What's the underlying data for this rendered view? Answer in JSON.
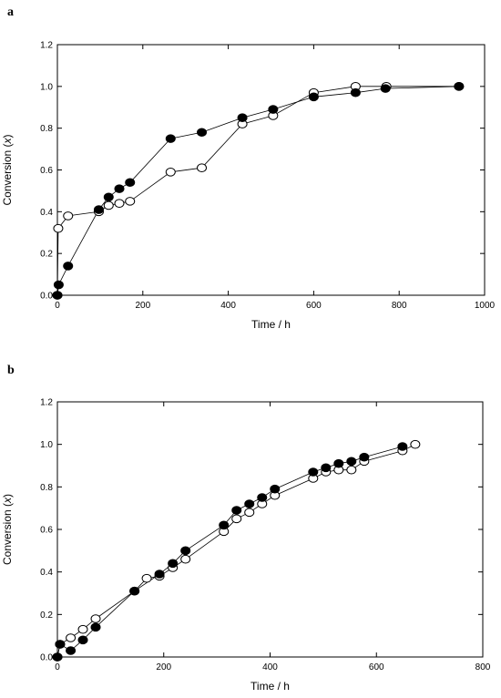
{
  "chart_data": [
    {
      "panel": "a",
      "type": "scatter",
      "xlabel": "Time / h",
      "ylabel": "Conversion (x)",
      "xlim": [
        0,
        1000
      ],
      "ylim": [
        0,
        1.2
      ],
      "xticks": [
        0,
        200,
        400,
        600,
        800,
        1000
      ],
      "yticks": [
        0.0,
        0.2,
        0.4,
        0.6,
        0.8,
        1.0,
        1.2
      ],
      "xtick_labels": [
        "0",
        "200",
        "400",
        "600",
        "800",
        "1000"
      ],
      "ytick_labels": [
        "0.0",
        "0.2",
        "0.4",
        "0.6",
        "0.8",
        "1.0",
        "1.2"
      ],
      "grid": false,
      "series": [
        {
          "marker": "filled-circle",
          "x": [
            0,
            3,
            25,
            97,
            120,
            145,
            170,
            265,
            338,
            433,
            505,
            600,
            698,
            768,
            940
          ],
          "y": [
            0.0,
            0.05,
            0.14,
            0.41,
            0.47,
            0.51,
            0.54,
            0.75,
            0.78,
            0.85,
            0.89,
            0.95,
            0.97,
            0.99,
            1.0
          ]
        },
        {
          "marker": "open-circle",
          "x": [
            0,
            2,
            25,
            97,
            120,
            145,
            170,
            265,
            338,
            433,
            505,
            600,
            698,
            770,
            940
          ],
          "y": [
            0.0,
            0.32,
            0.38,
            0.4,
            0.43,
            0.44,
            0.45,
            0.59,
            0.61,
            0.82,
            0.86,
            0.97,
            1.0,
            1.0,
            1.0
          ]
        }
      ]
    },
    {
      "panel": "b",
      "type": "scatter",
      "xlabel": "Time / h",
      "ylabel": "Conversion (x)",
      "xlim": [
        0,
        800
      ],
      "ylim": [
        0,
        1.2
      ],
      "xticks": [
        0,
        200,
        400,
        600,
        800
      ],
      "yticks": [
        0.0,
        0.2,
        0.4,
        0.6,
        0.8,
        1.0,
        1.2
      ],
      "xtick_labels": [
        "0",
        "200",
        "400",
        "600",
        "800"
      ],
      "ytick_labels": [
        "0.0",
        "0.2",
        "0.4",
        "0.6",
        "0.8",
        "1.0",
        "1.2"
      ],
      "grid": false,
      "series": [
        {
          "marker": "filled-circle",
          "x": [
            0,
            5,
            25,
            48,
            72,
            145,
            192,
            217,
            241,
            313,
            337,
            361,
            385,
            409,
            481,
            505,
            529,
            553,
            577,
            649
          ],
          "y": [
            0.0,
            0.06,
            0.03,
            0.08,
            0.14,
            0.31,
            0.39,
            0.44,
            0.5,
            0.62,
            0.69,
            0.72,
            0.75,
            0.79,
            0.87,
            0.89,
            0.91,
            0.92,
            0.94,
            0.99
          ]
        },
        {
          "marker": "open-circle",
          "x": [
            0,
            5,
            25,
            48,
            72,
            145,
            168,
            192,
            217,
            241,
            313,
            337,
            361,
            385,
            409,
            481,
            505,
            529,
            553,
            577,
            649,
            673
          ],
          "y": [
            0.0,
            0.06,
            0.09,
            0.13,
            0.18,
            0.31,
            0.37,
            0.38,
            0.42,
            0.46,
            0.59,
            0.65,
            0.68,
            0.72,
            0.76,
            0.84,
            0.87,
            0.88,
            0.88,
            0.92,
            0.97,
            1.0
          ]
        }
      ]
    }
  ]
}
